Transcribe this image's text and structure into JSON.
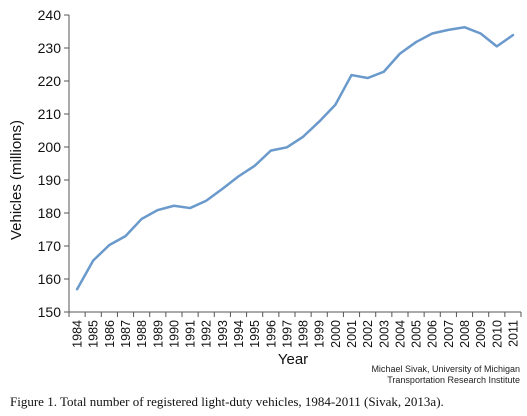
{
  "chart_data": {
    "type": "line",
    "ylabel": "Vehicles (millions)",
    "xlabel": "Year",
    "ylim": [
      150,
      240
    ],
    "yticks": [
      150,
      160,
      170,
      180,
      190,
      200,
      210,
      220,
      230,
      240
    ],
    "x": [
      "1984",
      "1985",
      "1986",
      "1987",
      "1988",
      "1989",
      "1990",
      "1991",
      "1992",
      "1993",
      "1994",
      "1995",
      "1996",
      "1997",
      "1998",
      "1999",
      "2000",
      "2001",
      "2002",
      "2003",
      "2004",
      "2005",
      "2006",
      "2007",
      "2008",
      "2009",
      "2010",
      "2011"
    ],
    "series": [
      {
        "values": [
          156.9,
          165.6,
          170.3,
          173.0,
          178.2,
          180.9,
          182.2,
          181.5,
          183.7,
          187.3,
          191.1,
          194.3,
          198.9,
          199.9,
          203.1,
          207.7,
          212.8,
          221.8,
          220.9,
          222.8,
          228.3,
          231.8,
          234.4,
          235.5,
          236.3,
          234.4,
          230.5,
          233.9
        ],
        "color": "#6a99cb"
      }
    ],
    "grid": false,
    "legend": "none"
  },
  "credit": {
    "line1": "Michael Sivak, University of Michigan",
    "line2": "Transportation Research Institute"
  },
  "caption": "Figure 1.  Total number of registered light-duty vehicles, 1984-2011 (Sivak, 2013a)."
}
